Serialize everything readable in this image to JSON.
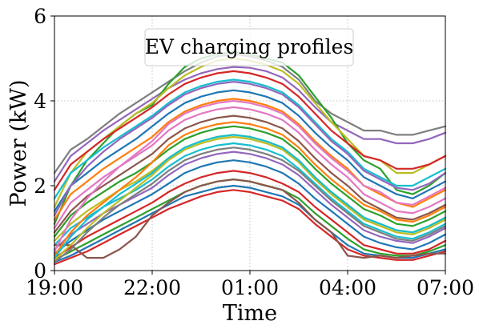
{
  "chart_data": {
    "type": "line",
    "title": "",
    "legend": {
      "text": "EV charging profiles",
      "placement": "top-center"
    },
    "xlabel": "Time",
    "ylabel": "Power (kW)",
    "x_ticks": [
      "19:00",
      "22:00",
      "01:00",
      "04:00",
      "07:00"
    ],
    "x": [
      "19:00",
      "19:30",
      "20:00",
      "20:30",
      "21:00",
      "21:30",
      "22:00",
      "22:30",
      "23:00",
      "23:30",
      "00:00",
      "00:30",
      "01:00",
      "01:30",
      "02:00",
      "02:30",
      "03:00",
      "03:30",
      "04:00",
      "04:30",
      "05:00",
      "05:30",
      "06:00",
      "06:30",
      "07:00"
    ],
    "y_ticks": [
      0,
      2,
      4,
      6
    ],
    "ylim": [
      0,
      6
    ],
    "grid": true,
    "series": [
      {
        "color": "#7f7f7f",
        "values": [
          2.3,
          2.85,
          3.1,
          3.4,
          3.7,
          3.95,
          4.2,
          4.45,
          4.7,
          4.9,
          5.05,
          5.1,
          5.05,
          4.95,
          4.8,
          4.5,
          4.0,
          3.7,
          3.5,
          3.3,
          3.3,
          3.2,
          3.2,
          3.3,
          3.4
        ]
      },
      {
        "color": "#9467bd",
        "values": [
          2.1,
          2.7,
          3.0,
          3.3,
          3.55,
          3.8,
          4.05,
          4.3,
          4.5,
          4.65,
          4.75,
          4.8,
          4.78,
          4.7,
          4.55,
          4.25,
          3.85,
          3.5,
          3.3,
          3.1,
          3.1,
          3.0,
          3.0,
          3.1,
          3.25
        ]
      },
      {
        "color": "#2ca02c",
        "values": [
          1.1,
          2.0,
          2.6,
          3.0,
          3.4,
          3.7,
          3.9,
          4.4,
          4.8,
          5.0,
          5.1,
          5.15,
          5.1,
          5.0,
          4.9,
          4.6,
          4.1,
          3.6,
          3.0,
          2.6,
          2.4,
          1.9,
          1.8,
          2.0,
          2.3
        ]
      },
      {
        "color": "#bcbd22",
        "values": [
          1.5,
          2.3,
          2.8,
          3.1,
          3.4,
          3.7,
          3.95,
          4.3,
          4.6,
          4.8,
          4.95,
          5.0,
          4.95,
          4.85,
          4.7,
          4.4,
          3.95,
          3.5,
          3.1,
          2.7,
          2.6,
          2.3,
          2.3,
          2.5,
          2.7
        ]
      },
      {
        "color": "#d62728",
        "values": [
          1.9,
          2.5,
          2.8,
          3.1,
          3.35,
          3.6,
          3.85,
          4.15,
          4.4,
          4.55,
          4.65,
          4.7,
          4.65,
          4.55,
          4.4,
          4.1,
          3.7,
          3.3,
          3.0,
          2.7,
          2.6,
          2.4,
          2.4,
          2.5,
          2.7
        ]
      },
      {
        "color": "#17becf",
        "values": [
          1.7,
          2.3,
          2.6,
          2.9,
          3.15,
          3.4,
          3.65,
          3.95,
          4.2,
          4.35,
          4.45,
          4.5,
          4.45,
          4.35,
          4.2,
          3.9,
          3.5,
          3.1,
          2.8,
          2.4,
          2.2,
          2.0,
          2.0,
          2.2,
          2.4
        ]
      },
      {
        "color": "#1f77b4",
        "values": [
          1.4,
          2.0,
          2.3,
          2.6,
          2.85,
          3.1,
          3.4,
          3.7,
          3.95,
          4.1,
          4.2,
          4.25,
          4.2,
          4.1,
          3.95,
          3.65,
          3.25,
          2.9,
          2.6,
          2.2,
          2.0,
          1.8,
          1.7,
          1.9,
          2.1
        ]
      },
      {
        "color": "#ff7f0e",
        "values": [
          1.2,
          1.8,
          2.1,
          2.4,
          2.65,
          2.9,
          3.15,
          3.5,
          3.75,
          3.9,
          4.0,
          4.05,
          4.0,
          3.9,
          3.75,
          3.45,
          3.05,
          2.7,
          2.4,
          2.0,
          1.8,
          1.6,
          1.5,
          1.7,
          1.9
        ]
      },
      {
        "color": "#e377c2",
        "values": [
          1.0,
          1.6,
          1.9,
          2.2,
          2.45,
          2.7,
          2.95,
          3.3,
          3.55,
          3.7,
          3.8,
          3.85,
          3.8,
          3.7,
          3.55,
          3.25,
          2.85,
          2.5,
          2.2,
          1.8,
          1.6,
          1.4,
          1.35,
          1.5,
          1.7
        ]
      },
      {
        "color": "#8c564b",
        "values": [
          0.9,
          1.4,
          1.75,
          2.0,
          2.25,
          2.5,
          2.75,
          3.1,
          3.35,
          3.5,
          3.6,
          3.65,
          3.6,
          3.5,
          3.35,
          3.05,
          2.65,
          2.3,
          2.0,
          1.65,
          1.45,
          1.25,
          1.2,
          1.35,
          1.55
        ]
      },
      {
        "color": "#2ca02c",
        "values": [
          0.8,
          1.3,
          1.6,
          1.85,
          2.1,
          2.3,
          2.55,
          2.85,
          3.1,
          3.25,
          3.35,
          3.4,
          3.35,
          3.25,
          3.1,
          2.8,
          2.4,
          2.05,
          1.75,
          1.45,
          1.3,
          1.1,
          1.05,
          1.2,
          1.4
        ]
      },
      {
        "color": "#bcbd22",
        "values": [
          0.7,
          1.1,
          1.4,
          1.65,
          1.9,
          2.1,
          2.35,
          2.65,
          2.9,
          3.05,
          3.15,
          3.2,
          3.15,
          3.05,
          2.9,
          2.6,
          2.2,
          1.85,
          1.55,
          1.25,
          1.1,
          0.95,
          0.9,
          1.05,
          1.25
        ]
      },
      {
        "color": "#17becf",
        "values": [
          0.6,
          1.0,
          1.25,
          1.5,
          1.7,
          1.9,
          2.15,
          2.45,
          2.7,
          2.85,
          2.95,
          3.0,
          2.95,
          2.85,
          2.7,
          2.4,
          2.05,
          1.7,
          1.4,
          1.1,
          0.95,
          0.8,
          0.75,
          0.9,
          1.1
        ]
      },
      {
        "color": "#9467bd",
        "values": [
          0.5,
          0.85,
          1.1,
          1.35,
          1.55,
          1.75,
          1.95,
          2.25,
          2.5,
          2.65,
          2.75,
          2.8,
          2.75,
          2.65,
          2.5,
          2.25,
          1.9,
          1.55,
          1.25,
          0.95,
          0.8,
          0.7,
          0.65,
          0.8,
          1.0
        ]
      },
      {
        "color": "#1f77b4",
        "values": [
          0.4,
          0.7,
          0.95,
          1.2,
          1.4,
          1.6,
          1.8,
          2.05,
          2.3,
          2.45,
          2.55,
          2.6,
          2.55,
          2.45,
          2.3,
          2.05,
          1.7,
          1.4,
          1.1,
          0.8,
          0.65,
          0.55,
          0.5,
          0.65,
          0.85
        ]
      },
      {
        "color": "#d62728",
        "values": [
          0.3,
          0.55,
          0.8,
          1.0,
          1.2,
          1.4,
          1.6,
          1.85,
          2.05,
          2.2,
          2.3,
          2.35,
          2.3,
          2.2,
          2.05,
          1.85,
          1.5,
          1.2,
          0.9,
          0.6,
          0.5,
          0.4,
          0.4,
          0.5,
          0.7
        ]
      },
      {
        "color": "#2ca02c",
        "values": [
          0.25,
          0.45,
          0.65,
          0.85,
          1.05,
          1.25,
          1.45,
          1.65,
          1.85,
          2.0,
          2.1,
          2.15,
          2.1,
          2.0,
          1.9,
          1.7,
          1.35,
          1.05,
          0.75,
          0.5,
          0.4,
          0.35,
          0.35,
          0.45,
          0.6
        ]
      },
      {
        "color": "#1f77b4",
        "values": [
          0.2,
          0.35,
          0.55,
          0.75,
          0.95,
          1.15,
          1.35,
          1.55,
          1.75,
          1.85,
          1.95,
          2.0,
          1.95,
          1.85,
          1.75,
          1.55,
          1.2,
          0.9,
          0.6,
          0.4,
          0.35,
          0.3,
          0.3,
          0.4,
          0.5
        ]
      },
      {
        "color": "#d62728",
        "values": [
          0.15,
          0.3,
          0.45,
          0.65,
          0.85,
          1.05,
          1.25,
          1.45,
          1.6,
          1.75,
          1.85,
          1.9,
          1.85,
          1.75,
          1.65,
          1.45,
          1.1,
          0.8,
          0.5,
          0.35,
          0.3,
          0.25,
          0.25,
          0.35,
          0.45
        ]
      },
      {
        "color": "#8c564b",
        "values": [
          0.6,
          0.6,
          0.3,
          0.3,
          0.5,
          0.8,
          1.3,
          1.6,
          1.85,
          2.0,
          2.1,
          2.15,
          2.1,
          2.0,
          1.9,
          1.6,
          1.2,
          0.9,
          0.35,
          0.3,
          0.35,
          0.3,
          0.35,
          0.4,
          0.4
        ]
      },
      {
        "color": "#ff7f0e",
        "values": [
          0.35,
          0.9,
          1.3,
          1.6,
          1.9,
          2.2,
          2.55,
          2.95,
          3.2,
          3.35,
          3.45,
          3.5,
          3.45,
          3.35,
          3.2,
          2.9,
          2.5,
          2.15,
          1.85,
          1.55,
          1.4,
          1.2,
          1.15,
          1.3,
          1.5
        ]
      },
      {
        "color": "#e377c2",
        "values": [
          0.45,
          1.2,
          1.7,
          2.1,
          2.45,
          2.75,
          3.05,
          3.45,
          3.7,
          3.85,
          3.95,
          4.0,
          3.95,
          3.85,
          3.7,
          3.4,
          3.0,
          2.65,
          2.35,
          2.0,
          1.85,
          1.6,
          1.55,
          1.75,
          1.95
        ]
      },
      {
        "color": "#7f7f7f",
        "values": [
          0.2,
          0.5,
          0.9,
          1.25,
          1.55,
          1.8,
          2.05,
          2.35,
          2.6,
          2.75,
          2.85,
          2.9,
          2.85,
          2.75,
          2.6,
          2.35,
          2.0,
          1.65,
          1.35,
          1.05,
          0.9,
          0.75,
          0.7,
          0.85,
          1.05
        ]
      },
      {
        "color": "#bcbd22",
        "values": [
          0.25,
          0.6,
          1.0,
          1.35,
          1.65,
          1.95,
          2.25,
          2.6,
          2.85,
          3.0,
          3.1,
          3.15,
          3.1,
          3.0,
          2.85,
          2.55,
          2.15,
          1.8,
          1.5,
          1.2,
          1.05,
          0.9,
          0.85,
          1.0,
          1.2
        ]
      },
      {
        "color": "#9467bd",
        "values": [
          1.3,
          2.0,
          2.45,
          2.8,
          3.1,
          3.35,
          3.6,
          3.9,
          4.15,
          4.3,
          4.4,
          4.45,
          4.4,
          4.3,
          4.15,
          3.85,
          3.45,
          3.05,
          2.75,
          2.35,
          2.15,
          1.95,
          1.9,
          2.05,
          2.3
        ]
      },
      {
        "color": "#17becf",
        "values": [
          0.3,
          0.8,
          1.2,
          1.5,
          1.8,
          2.05,
          2.3,
          2.65,
          2.9,
          3.05,
          3.15,
          3.2,
          3.15,
          3.05,
          2.9,
          2.6,
          2.2,
          1.85,
          1.55,
          1.25,
          1.1,
          0.95,
          0.9,
          1.05,
          1.25
        ]
      }
    ]
  }
}
